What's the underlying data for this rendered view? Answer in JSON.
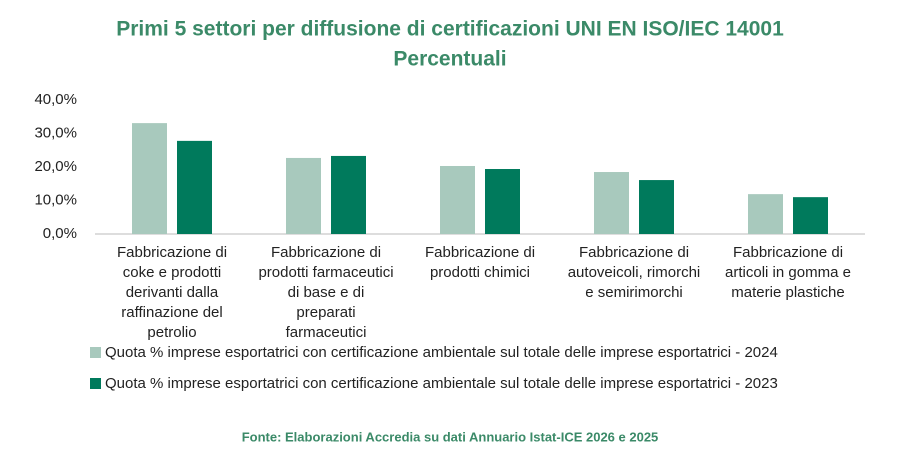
{
  "chart_data": {
    "type": "bar",
    "title": "Primi 5 settori per diffusione di certificazioni UNI EN ISO/IEC 14001",
    "subtitle": "Percentuali",
    "categories": [
      "Fabbricazione di coke e prodotti derivanti dalla raffinazione del petrolio",
      "Fabbricazione di prodotti farmaceutici di base e di preparati farmaceutici",
      "Fabbricazione di prodotti chimici",
      "Fabbricazione di autoveicoli, rimorchi e semirimorchi",
      "Fabbricazione di articoli in gomma e materie plastiche"
    ],
    "series": [
      {
        "name": "Quota % imprese esportatrici con certificazione ambientale sul totale delle imprese esportatrici - 2024",
        "color": "#a8c9bd",
        "values": [
          33.1,
          22.7,
          20.3,
          18.5,
          11.9
        ]
      },
      {
        "name": "Quota % imprese esportatrici con certificazione ambientale sul totale delle imprese esportatrici - 2023",
        "color": "#007a5c",
        "values": [
          27.8,
          23.3,
          19.4,
          16.1,
          11.0
        ]
      }
    ],
    "ylim": [
      0,
      40
    ],
    "yticks": [
      {
        "value": 0,
        "label": "0,0%"
      },
      {
        "value": 10,
        "label": "10,0%"
      },
      {
        "value": 20,
        "label": "20,0%"
      },
      {
        "value": 30,
        "label": "30,0%"
      },
      {
        "value": 40,
        "label": "40,0%"
      }
    ],
    "grid": false,
    "legend": "bottom",
    "source": "Fonte: Elaborazioni Accredia su dati Annuario Istat-ICE 2026 e 2025"
  }
}
